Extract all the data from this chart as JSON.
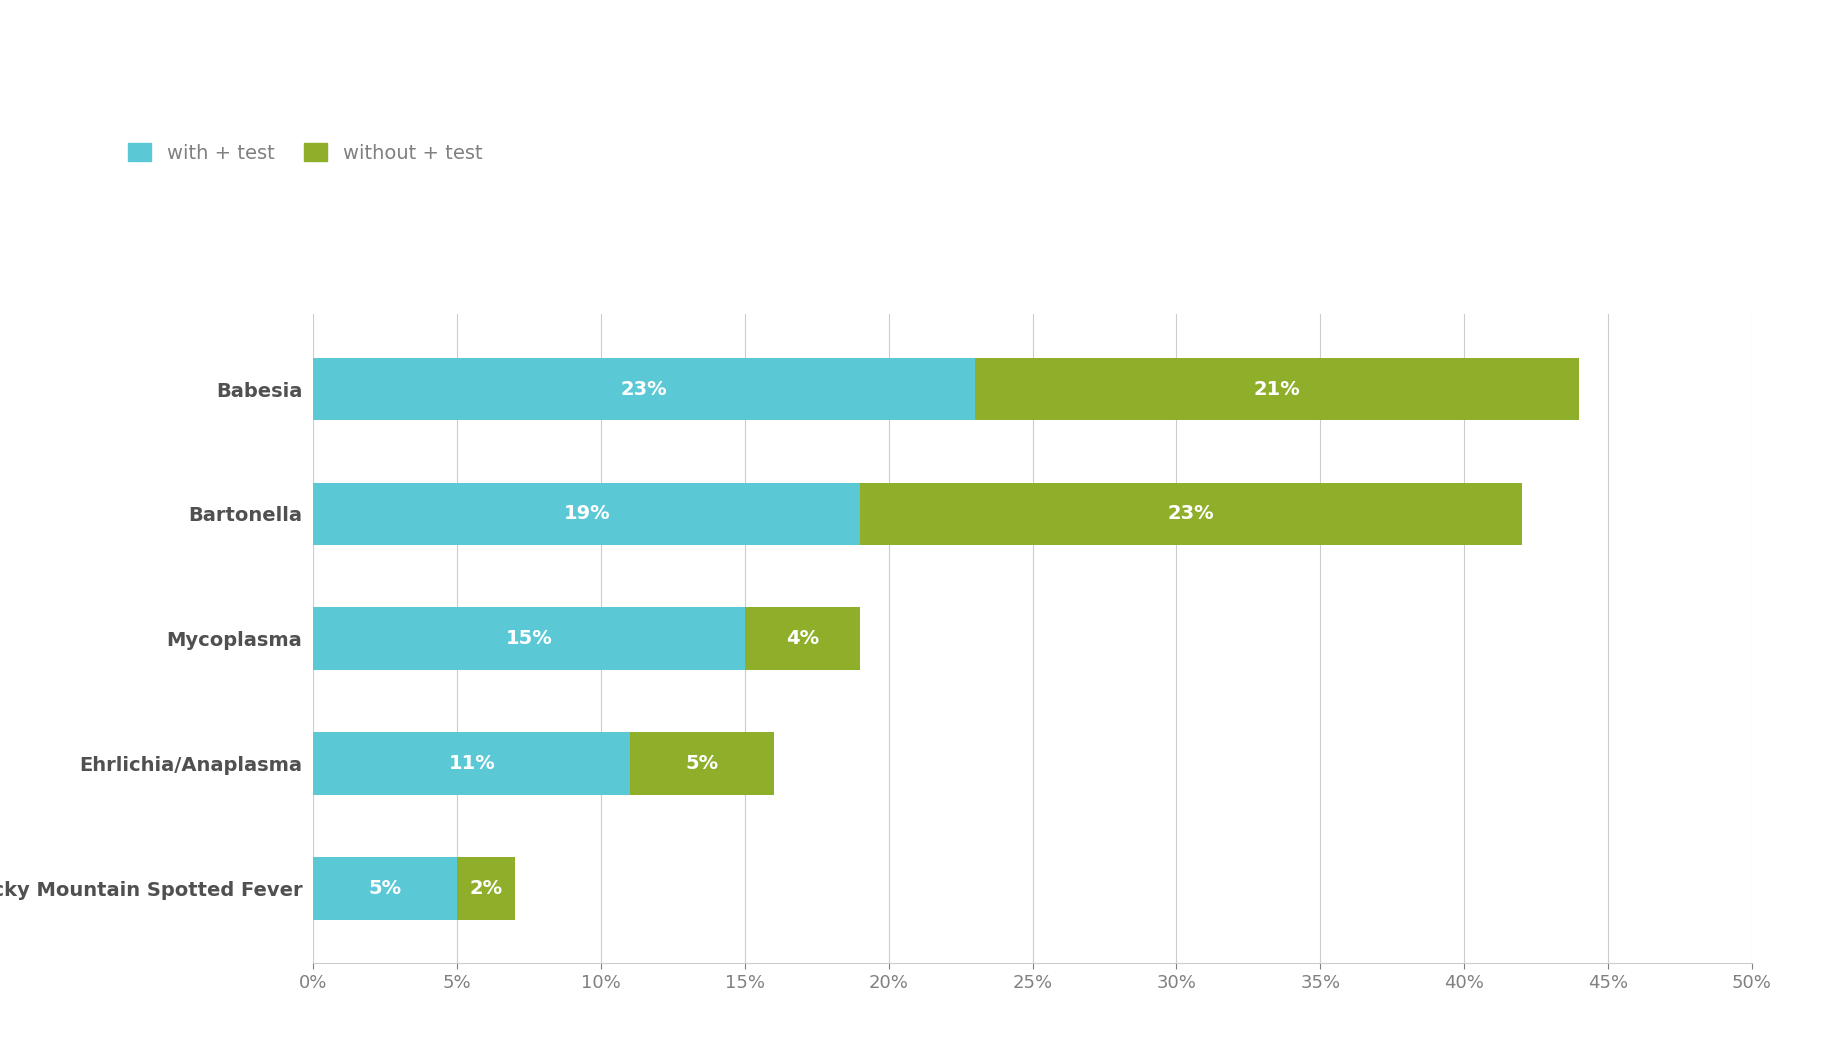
{
  "categories": [
    "Rocky Mountain Spotted Fever",
    "Ehrlichia/Anaplasma",
    "Mycoplasma",
    "Bartonella",
    "Babesia"
  ],
  "with_test": [
    5,
    11,
    15,
    19,
    23
  ],
  "without_test": [
    2,
    5,
    4,
    23,
    21
  ],
  "with_test_labels": [
    "5%",
    "11%",
    "15%",
    "19%",
    "23%"
  ],
  "without_test_labels": [
    "2%",
    "5%",
    "4%",
    "23%",
    "21%"
  ],
  "color_with": "#5BC8D5",
  "color_without": "#8FAF2A",
  "background_color": "#FFFFFF",
  "legend_with": "with + test",
  "legend_without": "without + test",
  "xlim": [
    0,
    50
  ],
  "xticks": [
    0,
    5,
    10,
    15,
    20,
    25,
    30,
    35,
    40,
    45,
    50
  ],
  "xtick_labels": [
    "0%",
    "5%",
    "10%",
    "15%",
    "20%",
    "25%",
    "30%",
    "35%",
    "40%",
    "45%",
    "50%"
  ],
  "bar_height": 0.5,
  "text_color_white": "#FFFFFF",
  "grid_color": "#CCCCCC",
  "axis_label_color": "#808080",
  "category_label_color": "#505050",
  "label_fontsize": 14,
  "tick_fontsize": 13,
  "legend_fontsize": 14
}
